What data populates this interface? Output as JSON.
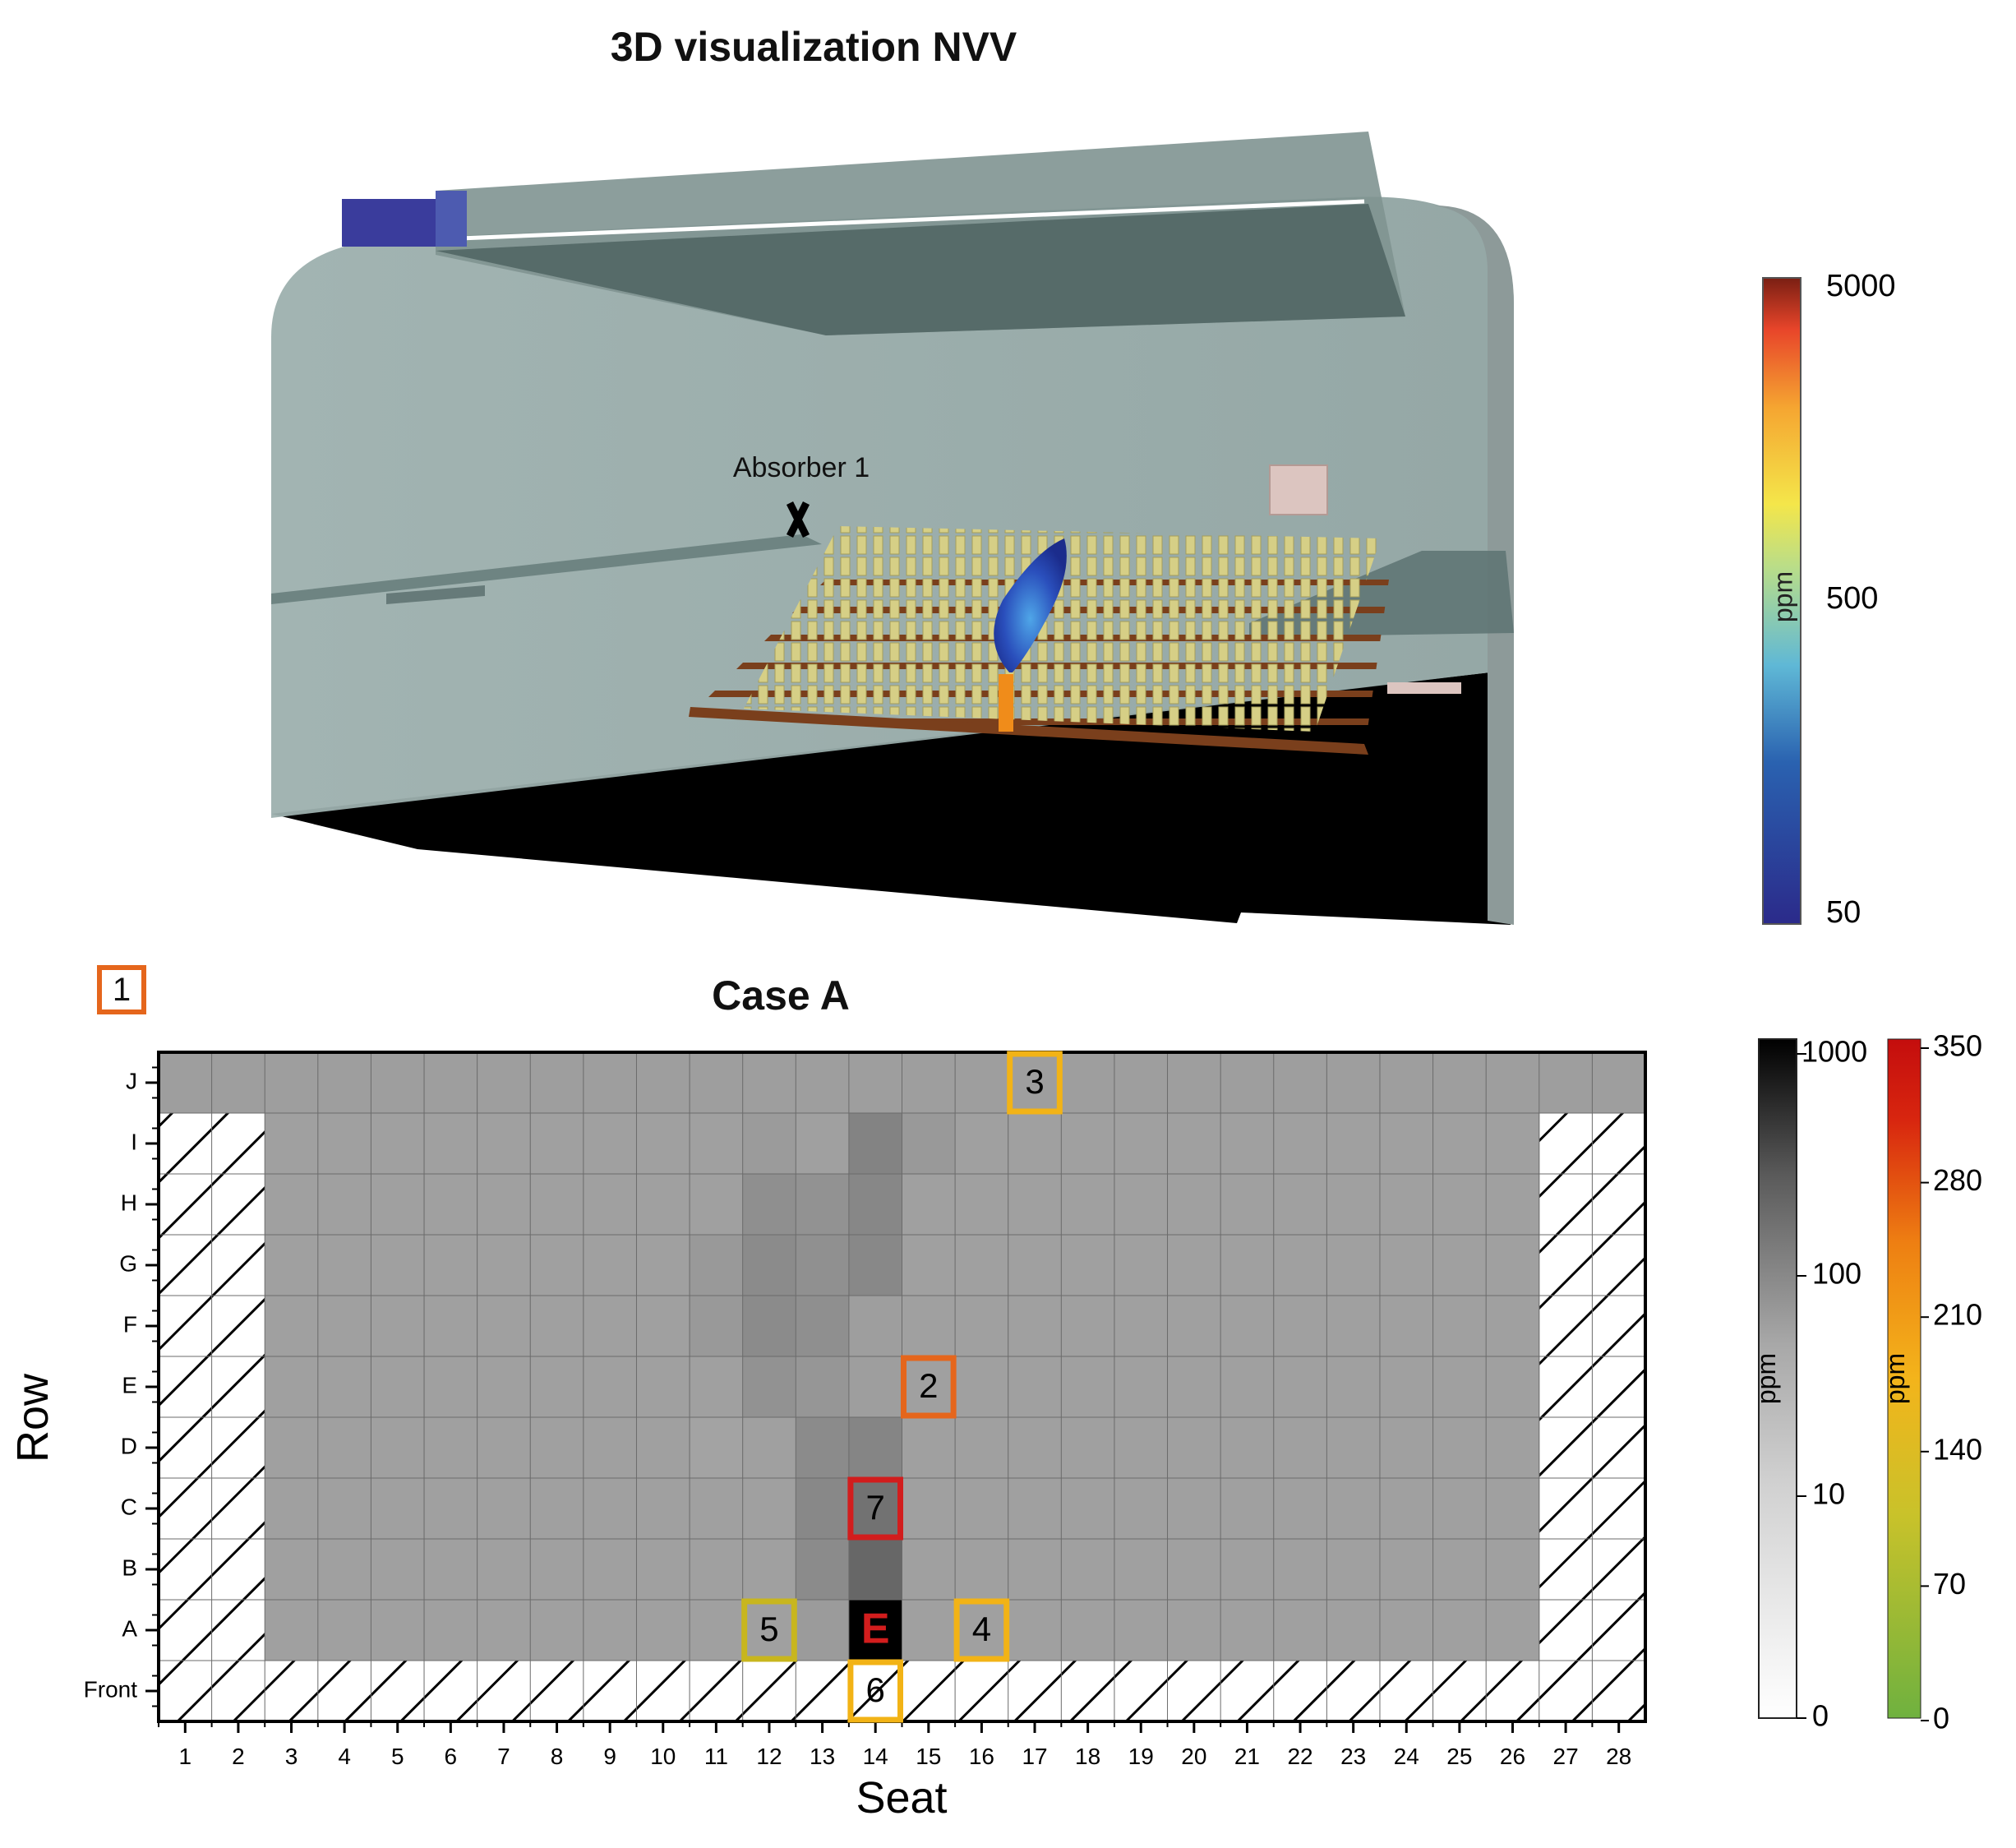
{
  "figure_title": "3D visualization NVV",
  "scene": {
    "absorber_label": "Absorber 1",
    "colorbar": {
      "unit": "ppm",
      "ticks": [
        "5000",
        "500",
        "50"
      ],
      "colors": [
        "#2b2a8a",
        "#2a62b0",
        "#5fb8d6",
        "#f4e64a",
        "#f5a531",
        "#e8452a",
        "#7a1f13"
      ],
      "scale": "log"
    },
    "colors": {
      "walls": "#9aabaa",
      "floor": "#000000",
      "inlet": "#3a3c9c",
      "seats": "#d8d08a",
      "platform": "#7a3f1c",
      "plume": "#1f3da8",
      "emitter": "#f08c1a"
    }
  },
  "case_badge": "1",
  "chart_data": {
    "type": "heatmap",
    "title": "Case A",
    "xlabel": "Seat",
    "ylabel": "Row",
    "x_categories": [
      "1",
      "2",
      "3",
      "4",
      "5",
      "6",
      "7",
      "8",
      "9",
      "10",
      "11",
      "12",
      "13",
      "14",
      "15",
      "16",
      "17",
      "18",
      "19",
      "20",
      "21",
      "22",
      "23",
      "24",
      "25",
      "26",
      "27",
      "28"
    ],
    "y_categories": [
      "Front",
      "A",
      "B",
      "C",
      "D",
      "E",
      "F",
      "G",
      "H",
      "I",
      "J"
    ],
    "colorscale": "log grayscale",
    "zlim": [
      0,
      1000
    ],
    "unit": "ppm",
    "background_value": 12,
    "unavailable_seats": {
      "Front": "all",
      "A": [
        1,
        2,
        27,
        28
      ],
      "B": [
        1,
        2,
        27,
        28
      ],
      "C": [
        1,
        2,
        27,
        28
      ],
      "D": [
        1,
        2,
        27,
        28
      ],
      "E": [
        1,
        2,
        27,
        28
      ],
      "F": [
        1,
        2,
        27,
        28
      ],
      "G": [
        1,
        2,
        27,
        28
      ],
      "H": [
        1,
        2,
        27,
        28
      ],
      "I": [
        1,
        2,
        27,
        28
      ]
    },
    "cells": [
      {
        "row": "J",
        "seat": 3,
        "value": 13
      },
      {
        "row": "J",
        "seat": 4,
        "value": 13
      },
      {
        "row": "J",
        "seat": 5,
        "value": 13
      },
      {
        "row": "J",
        "seat": 6,
        "value": 13
      },
      {
        "row": "J",
        "seat": 7,
        "value": 13
      },
      {
        "row": "J",
        "seat": 8,
        "value": 13
      },
      {
        "row": "J",
        "seat": 9,
        "value": 13
      },
      {
        "row": "J",
        "seat": 10,
        "value": 13
      },
      {
        "row": "J",
        "seat": 11,
        "value": 13
      },
      {
        "row": "J",
        "seat": 12,
        "value": 13
      },
      {
        "row": "J",
        "seat": 13,
        "value": 13
      },
      {
        "row": "J",
        "seat": 14,
        "value": 13
      },
      {
        "row": "J",
        "seat": 15,
        "value": 13
      },
      {
        "row": "J",
        "seat": 16,
        "value": 13
      },
      {
        "row": "J",
        "seat": 17,
        "value": 13
      },
      {
        "row": "J",
        "seat": 18,
        "value": 13
      },
      {
        "row": "J",
        "seat": 19,
        "value": 13
      },
      {
        "row": "J",
        "seat": 20,
        "value": 13
      },
      {
        "row": "J",
        "seat": 21,
        "value": 13
      },
      {
        "row": "J",
        "seat": 22,
        "value": 13
      },
      {
        "row": "J",
        "seat": 23,
        "value": 13
      },
      {
        "row": "J",
        "seat": 24,
        "value": 13
      },
      {
        "row": "J",
        "seat": 25,
        "value": 13
      },
      {
        "row": "J",
        "seat": 26,
        "value": 13
      },
      {
        "row": "J",
        "seat": 1,
        "value": 13
      },
      {
        "row": "J",
        "seat": 2,
        "value": 13
      },
      {
        "row": "J",
        "seat": 27,
        "value": 13
      },
      {
        "row": "J",
        "seat": 28,
        "value": 13
      },
      {
        "row": "I",
        "seat": 12,
        "value": 14
      },
      {
        "row": "I",
        "seat": 14,
        "value": 28
      },
      {
        "row": "I",
        "seat": 15,
        "value": 15
      },
      {
        "row": "H",
        "seat": 12,
        "value": 20
      },
      {
        "row": "H",
        "seat": 13,
        "value": 18
      },
      {
        "row": "H",
        "seat": 14,
        "value": 25
      },
      {
        "row": "G",
        "seat": 11,
        "value": 15
      },
      {
        "row": "G",
        "seat": 12,
        "value": 22
      },
      {
        "row": "G",
        "seat": 13,
        "value": 19
      },
      {
        "row": "G",
        "seat": 14,
        "value": 24
      },
      {
        "row": "F",
        "seat": 11,
        "value": 15
      },
      {
        "row": "F",
        "seat": 12,
        "value": 22
      },
      {
        "row": "F",
        "seat": 13,
        "value": 20
      },
      {
        "row": "F",
        "seat": 14,
        "value": 13
      },
      {
        "row": "E",
        "seat": 12,
        "value": 18
      },
      {
        "row": "E",
        "seat": 13,
        "value": 16
      },
      {
        "row": "E",
        "seat": 14,
        "value": 13
      },
      {
        "row": "D",
        "seat": 11,
        "value": 11
      },
      {
        "row": "D",
        "seat": 13,
        "value": 22
      },
      {
        "row": "D",
        "seat": 14,
        "value": 26
      },
      {
        "row": "C",
        "seat": 13,
        "value": 24
      },
      {
        "row": "C",
        "seat": 14,
        "value": 45
      },
      {
        "row": "B",
        "seat": 13,
        "value": 22
      },
      {
        "row": "B",
        "seat": 14,
        "value": 60
      },
      {
        "row": "A",
        "seat": 13,
        "value": 14
      },
      {
        "row": "A",
        "seat": 14,
        "value": 1000
      }
    ],
    "colorbars": [
      {
        "name": "gray",
        "ticks": [
          "1000",
          "100",
          "10",
          "0"
        ],
        "unit": "ppm",
        "scale": "log",
        "range": [
          0,
          1000
        ]
      },
      {
        "name": "warm",
        "ticks": [
          "350",
          "280",
          "210",
          "140",
          "70",
          "0"
        ],
        "unit": "ppm",
        "scale": "linear",
        "range": [
          0,
          350
        ],
        "colors": [
          "#6fb13f",
          "#c9c22a",
          "#f3b41b",
          "#ee7f12",
          "#d8260f",
          "#c40d0d"
        ]
      }
    ],
    "markers": [
      {
        "label": "3",
        "row": "J",
        "seat": 17,
        "color": "#f2b316"
      },
      {
        "label": "2",
        "row": "E",
        "seat": 15,
        "color": "#e5661c"
      },
      {
        "label": "7",
        "row": "C",
        "seat": 14,
        "color": "#d21d1d"
      },
      {
        "label": "5",
        "row": "A",
        "seat": 12,
        "color": "#c8b61e"
      },
      {
        "label": "4",
        "row": "A",
        "seat": 16,
        "color": "#f2b316"
      },
      {
        "label": "6",
        "row": "Front",
        "seat": 14,
        "color": "#f2b316"
      },
      {
        "label": "E",
        "row": "A",
        "seat": 14,
        "color": "#d21d1d",
        "style": "emitter"
      }
    ]
  }
}
